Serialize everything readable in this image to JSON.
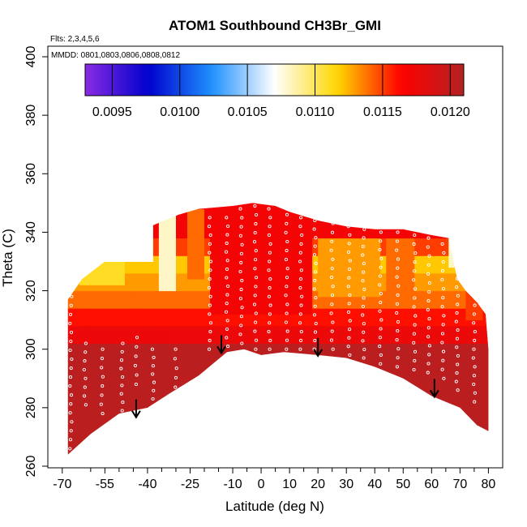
{
  "chart_data": {
    "type": "heatmap",
    "title": "ATOM1 Southbound CH3Br_GMI",
    "flights_note": "Flts: 2,3,4,5,6",
    "dates_note": "MMDD: 0801,0803,0806,0808,0812",
    "xlabel": "Latitude (deg N)",
    "ylabel": "Theta (C)",
    "xlim": [
      -70,
      82
    ],
    "ylim": [
      260,
      403
    ],
    "x_tick_labels": [
      "-70",
      "-55",
      "-40",
      "-25",
      "-10",
      "0",
      "10",
      "20",
      "30",
      "40",
      "50",
      "60",
      "70",
      "80"
    ],
    "x_tick_values": [
      -70,
      -55,
      -40,
      -25,
      -10,
      0,
      10,
      20,
      30,
      40,
      50,
      60,
      70,
      80
    ],
    "x_minor_ticks": [
      -60,
      -50,
      -45,
      -35,
      -30,
      -20,
      -15,
      -5,
      5,
      15,
      25,
      35,
      45,
      55,
      65,
      75
    ],
    "y_tick_labels": [
      "260",
      "280",
      "300",
      "320",
      "340",
      "360",
      "380",
      "400"
    ],
    "y_tick_values": [
      260,
      280,
      300,
      320,
      340,
      360,
      380,
      400
    ],
    "colorbar": {
      "range": [
        0.0093,
        0.0121
      ],
      "tick_labels": [
        "0.0095",
        "0.0100",
        "0.0105",
        "0.0110",
        "0.0115",
        "0.0120"
      ],
      "tick_values": [
        0.0095,
        0.01,
        0.0105,
        0.011,
        0.0115,
        0.012
      ],
      "colors": [
        "#8a2be2",
        "#0000cd",
        "#1e90ff",
        "#ffffff",
        "#ffd700",
        "#ff0000",
        "#b22222"
      ]
    },
    "arrows": [
      {
        "lat": -44,
        "theta": 277
      },
      {
        "lat": -14,
        "theta": 299
      },
      {
        "lat": 20,
        "theta": 298
      },
      {
        "lat": 61,
        "theta": 284
      }
    ],
    "top_boundary": [
      [
        -68,
        317
      ],
      [
        -63,
        324
      ],
      [
        -55,
        330
      ],
      [
        -50,
        337
      ],
      [
        -44,
        340
      ],
      [
        -39,
        342
      ],
      [
        -34,
        344
      ],
      [
        -29,
        346
      ],
      [
        -22,
        348
      ],
      [
        -10,
        349
      ],
      [
        -3,
        350
      ],
      [
        5,
        349
      ],
      [
        10,
        347
      ],
      [
        20,
        344
      ],
      [
        30,
        342
      ],
      [
        40,
        341
      ],
      [
        50,
        341
      ],
      [
        60,
        339
      ],
      [
        66,
        338
      ],
      [
        69,
        324
      ],
      [
        72,
        320
      ],
      [
        76,
        316
      ],
      [
        79,
        312
      ],
      [
        80,
        300
      ]
    ],
    "bottom_boundary": [
      [
        -68,
        264
      ],
      [
        -60,
        271
      ],
      [
        -50,
        278
      ],
      [
        -40,
        280
      ],
      [
        -32,
        285
      ],
      [
        -22,
        291
      ],
      [
        -12,
        299
      ],
      [
        -6,
        300
      ],
      [
        0,
        298
      ],
      [
        8,
        299
      ],
      [
        20,
        298
      ],
      [
        30,
        297
      ],
      [
        40,
        294
      ],
      [
        50,
        290
      ],
      [
        60,
        284
      ],
      [
        70,
        280
      ],
      [
        76,
        274
      ],
      [
        80,
        272
      ]
    ],
    "field_layers": [
      {
        "theta_min": 260,
        "theta_max": 302,
        "value": 0.01205
      },
      {
        "theta_min": 302,
        "theta_max": 308,
        "value": 0.01175
      },
      {
        "theta_min": 308,
        "theta_max": 314,
        "value": 0.0116
      },
      {
        "theta_min": 314,
        "theta_max": 320,
        "value": 0.0114
      },
      {
        "theta_min": 320,
        "theta_max": 326,
        "value": 0.0113
      },
      {
        "theta_min": 326,
        "theta_max": 332,
        "value": 0.0112
      },
      {
        "theta_min": 332,
        "theta_max": 338,
        "value": 0.0115
      },
      {
        "theta_min": 338,
        "theta_max": 352,
        "value": 0.0117
      }
    ],
    "field_anomalies": [
      {
        "lat_min": -63,
        "lat_max": -38,
        "theta_min": 330,
        "theta_max": 344,
        "value": 0.0107
      },
      {
        "lat_min": -63,
        "lat_max": -48,
        "theta_min": 323,
        "theta_max": 330,
        "value": 0.0111
      },
      {
        "lat_min": -36,
        "lat_max": -30,
        "theta_min": 320,
        "theta_max": 346,
        "value": 0.0108
      },
      {
        "lat_min": -26,
        "lat_max": -20,
        "theta_min": 325,
        "theta_max": 348,
        "value": 0.0114
      },
      {
        "lat_min": -18,
        "lat_max": 18,
        "theta_min": 312,
        "theta_max": 350,
        "value": 0.0117
      },
      {
        "lat_min": 20,
        "lat_max": 42,
        "theta_min": 318,
        "theta_max": 338,
        "value": 0.0113
      },
      {
        "lat_min": 45,
        "lat_max": 55,
        "theta_min": 320,
        "theta_max": 338,
        "value": 0.0114
      },
      {
        "lat_min": 66,
        "lat_max": 72,
        "theta_min": 328,
        "theta_max": 339,
        "value": 0.0108
      },
      {
        "lat_min": 72,
        "lat_max": 79,
        "theta_min": 310,
        "theta_max": 320,
        "value": 0.0115
      }
    ],
    "sample_tracks": [
      {
        "lat": -67,
        "theta_min": 266,
        "theta_max": 318
      },
      {
        "lat": -62,
        "theta_min": 281,
        "theta_max": 302
      },
      {
        "lat": -56,
        "theta_min": 278,
        "theta_max": 300
      },
      {
        "lat": -49,
        "theta_min": 279,
        "theta_max": 302
      },
      {
        "lat": -44,
        "theta_min": 288,
        "theta_max": 304
      },
      {
        "lat": -38,
        "theta_min": 283,
        "theta_max": 300
      },
      {
        "lat": -30,
        "theta_min": 287,
        "theta_max": 300
      },
      {
        "lat": -18,
        "theta_min": 300,
        "theta_max": 345
      },
      {
        "lat": -12,
        "theta_min": 301,
        "theta_max": 345
      },
      {
        "lat": -7,
        "theta_min": 302,
        "theta_max": 348
      },
      {
        "lat": -2,
        "theta_min": 300,
        "theta_max": 349
      },
      {
        "lat": 3,
        "theta_min": 300,
        "theta_max": 348
      },
      {
        "lat": 9,
        "theta_min": 300,
        "theta_max": 346
      },
      {
        "lat": 14,
        "theta_min": 300,
        "theta_max": 345
      },
      {
        "lat": 19,
        "theta_min": 300,
        "theta_max": 344
      },
      {
        "lat": 25,
        "theta_min": 300,
        "theta_max": 343
      },
      {
        "lat": 31,
        "theta_min": 298,
        "theta_max": 342
      },
      {
        "lat": 36,
        "theta_min": 297,
        "theta_max": 341
      },
      {
        "lat": 42,
        "theta_min": 295,
        "theta_max": 340
      },
      {
        "lat": 48,
        "theta_min": 294,
        "theta_max": 340
      },
      {
        "lat": 54,
        "theta_min": 293,
        "theta_max": 339
      },
      {
        "lat": 59,
        "theta_min": 292,
        "theta_max": 338
      },
      {
        "lat": 64,
        "theta_min": 290,
        "theta_max": 336
      },
      {
        "lat": 69,
        "theta_min": 286,
        "theta_max": 330
      },
      {
        "lat": 75,
        "theta_min": 282,
        "theta_max": 315
      }
    ]
  }
}
